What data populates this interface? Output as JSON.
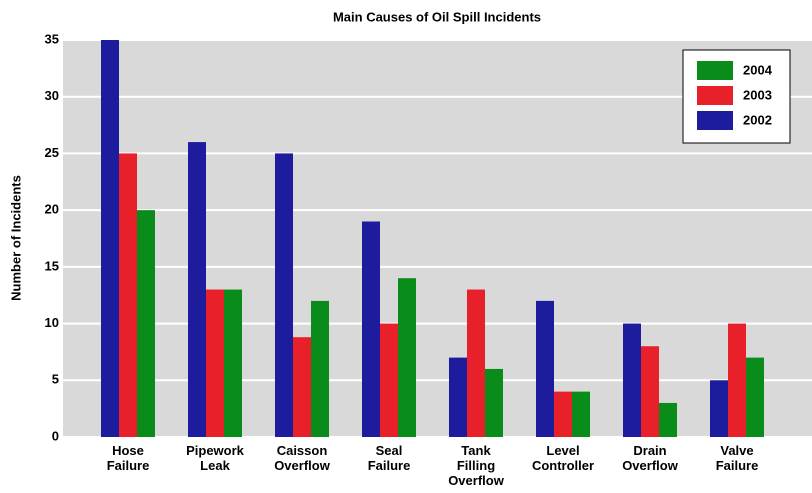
{
  "chart_data": {
    "type": "bar",
    "title": "Main Causes of Oil Spill Incidents",
    "y_label": "Number of Incidents",
    "categories": [
      "Hose\nFailure",
      "Pipework\nLeak",
      "Caisson\nOverflow",
      "Seal\nFailure",
      "Tank\nFilling\nOverflow",
      "Level\nController",
      "Drain\nOverflow",
      "Valve\nFailure"
    ],
    "series": [
      {
        "name": "2002",
        "color": "#1c1c9c",
        "values": [
          35,
          26,
          25,
          19,
          7,
          12,
          10,
          5
        ]
      },
      {
        "name": "2003",
        "color": "#e8202a",
        "values": [
          25,
          13,
          8.8,
          10,
          13,
          4,
          8,
          10
        ]
      },
      {
        "name": "2004",
        "color": "#0a8c1a",
        "values": [
          20,
          13,
          12,
          14,
          6,
          4,
          3,
          7
        ]
      }
    ],
    "ylim": [
      0,
      35
    ],
    "yticks": [
      0,
      5,
      10,
      15,
      20,
      25,
      30,
      35
    ],
    "grid": true,
    "legend": "upper right"
  }
}
